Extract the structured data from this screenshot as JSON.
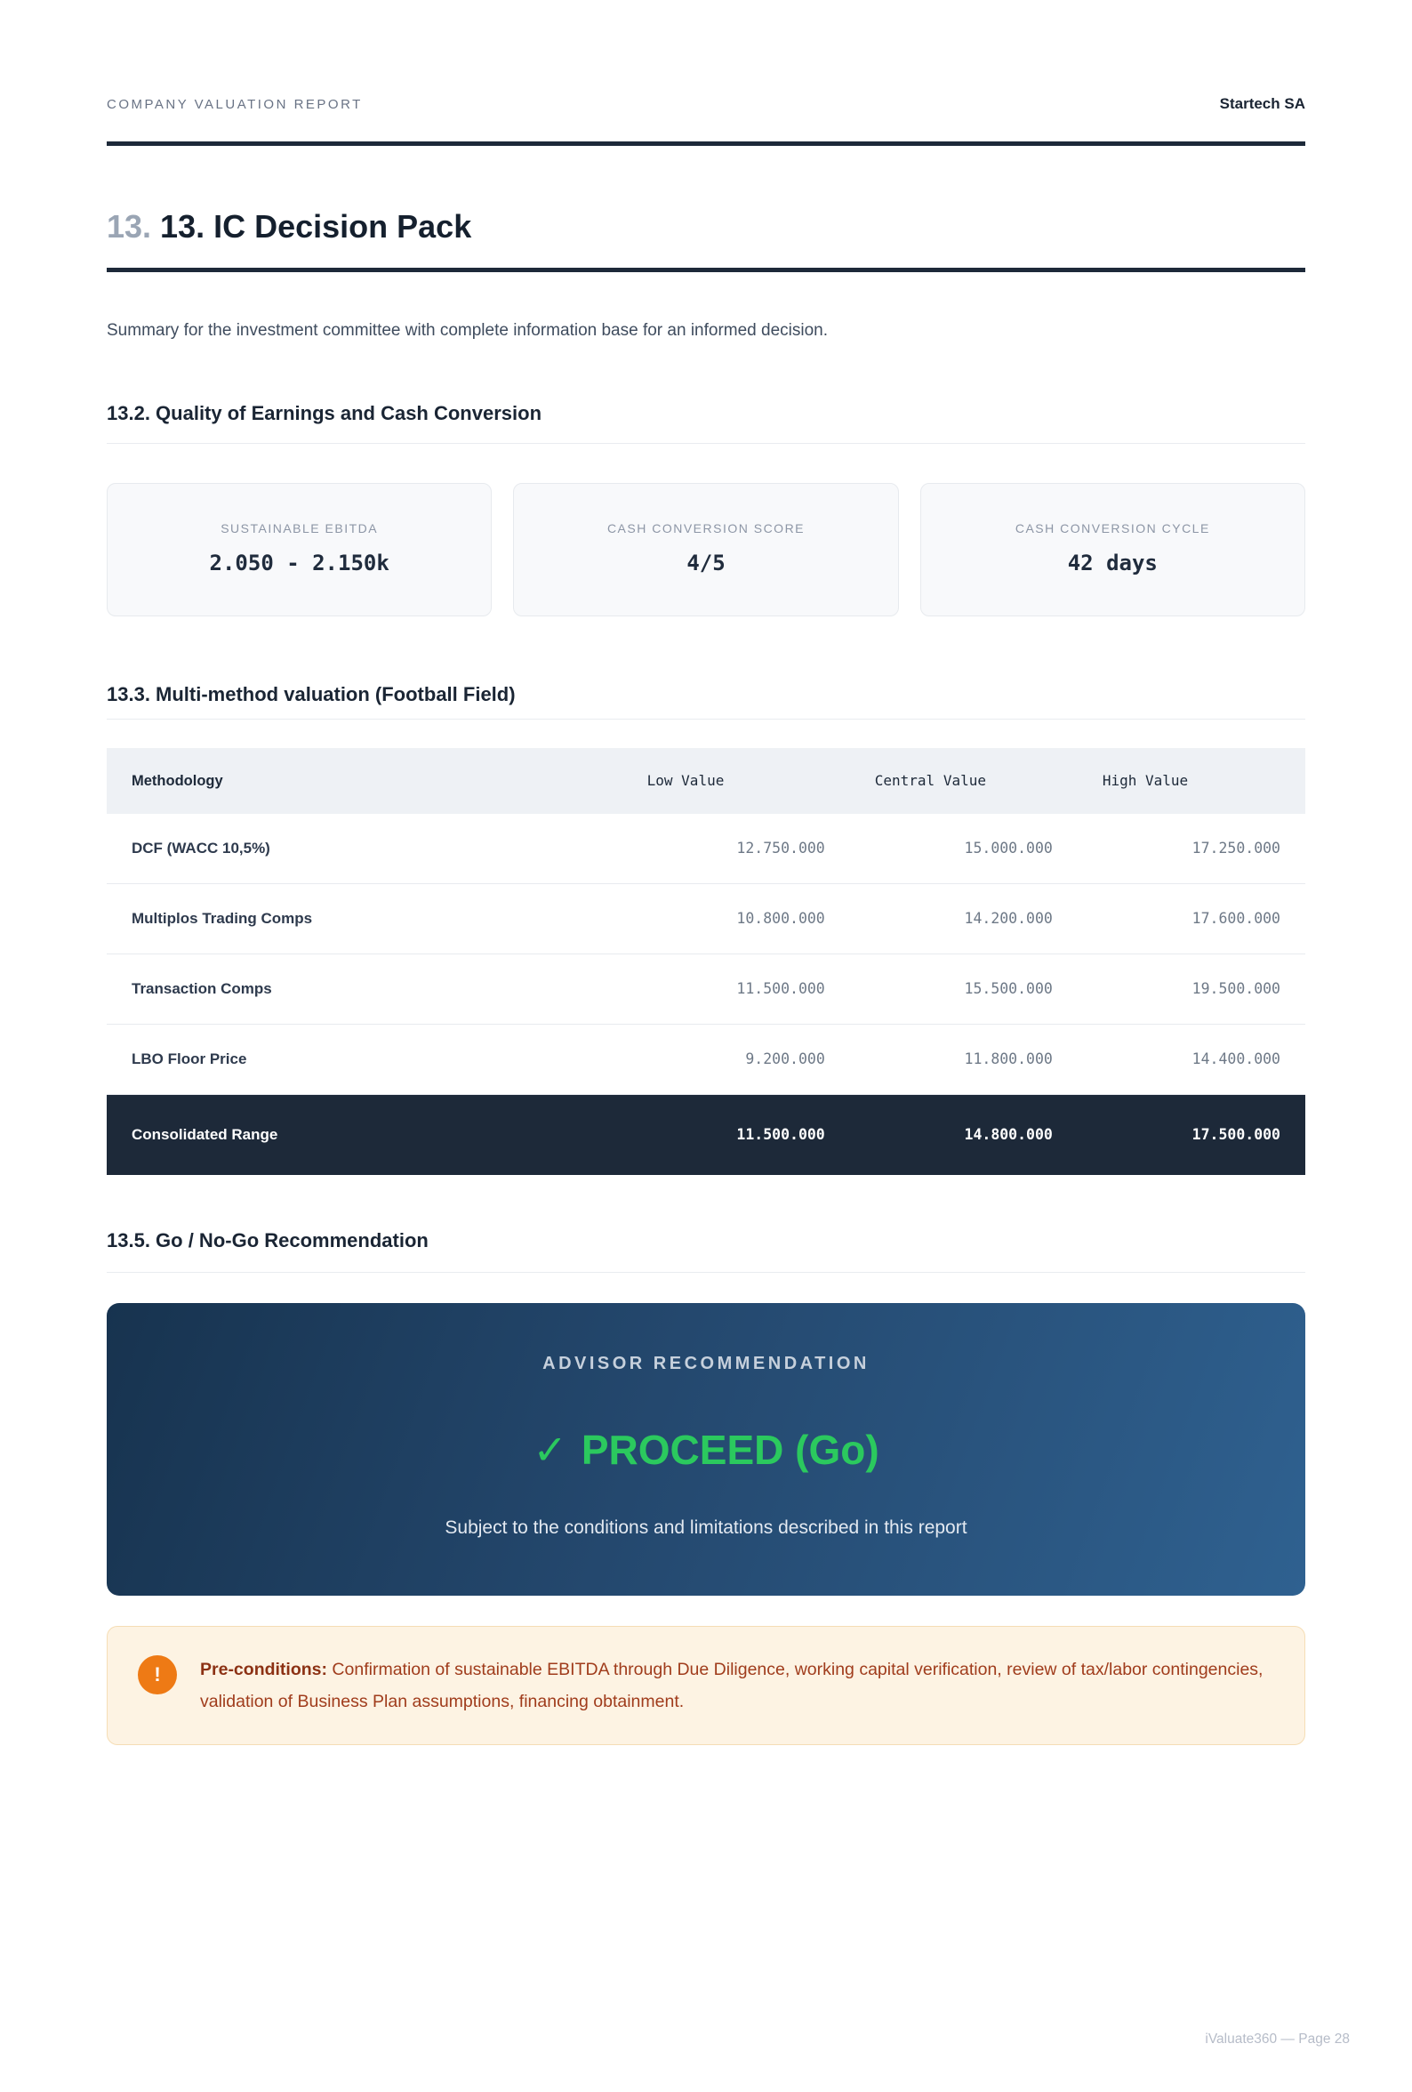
{
  "header": {
    "report_label": "COMPANY VALUATION REPORT",
    "company": "Startech SA"
  },
  "title": {
    "number": "13.",
    "text": "13. IC Decision Pack"
  },
  "intro": "Summary for the investment committee with complete information base for an informed decision.",
  "sections": {
    "quality_heading": "13.2. Quality of Earnings and Cash Conversion",
    "valuation_heading": "13.3. Multi-method valuation (Football Field)",
    "recommendation_heading": "13.5. Go / No-Go Recommendation"
  },
  "kpis": [
    {
      "label": "SUSTAINABLE EBITDA",
      "value": "2.050 - 2.150k"
    },
    {
      "label": "CASH CONVERSION SCORE",
      "value": "4/5"
    },
    {
      "label": "CASH CONVERSION CYCLE",
      "value": "42 days"
    }
  ],
  "valuation_table": {
    "columns": [
      "Methodology",
      "Low Value",
      "Central Value",
      "High Value"
    ],
    "rows": [
      {
        "method": "DCF (WACC 10,5%)",
        "low": "12.750.000",
        "central": "15.000.000",
        "high": "17.250.000"
      },
      {
        "method": "Multiplos Trading Comps",
        "low": "10.800.000",
        "central": "14.200.000",
        "high": "17.600.000"
      },
      {
        "method": "Transaction Comps",
        "low": "11.500.000",
        "central": "15.500.000",
        "high": "19.500.000"
      },
      {
        "method": "LBO Floor Price",
        "low": "9.200.000",
        "central": "11.800.000",
        "high": "14.400.000"
      }
    ],
    "total_row": {
      "method": "Consolidated Range",
      "low": "11.500.000",
      "central": "14.800.000",
      "high": "17.500.000"
    }
  },
  "advisor": {
    "title": "ADVISOR RECOMMENDATION",
    "check": "✓",
    "decision": "PROCEED (Go)",
    "subtitle": "Subject to the conditions and limitations described in this report",
    "accent_green": "#2bc95e",
    "gradient_start": "#17334f",
    "gradient_end": "#2f6190"
  },
  "preconditions": {
    "icon": "!",
    "label": "Pre-conditions:",
    "text": " Confirmation of sustainable EBITDA through Due Diligence, working capital verification, review of tax/labor contingencies, validation of Business Plan assumptions, financing obtainment.",
    "icon_color": "#ee7a15",
    "background": "#fdf3e3"
  },
  "footer": {
    "text": "iValuate360 — Page 28"
  },
  "colors": {
    "dark_navy": "#1d2939",
    "muted_gray": "#8d96a6",
    "divider": "#e9ecf0"
  }
}
